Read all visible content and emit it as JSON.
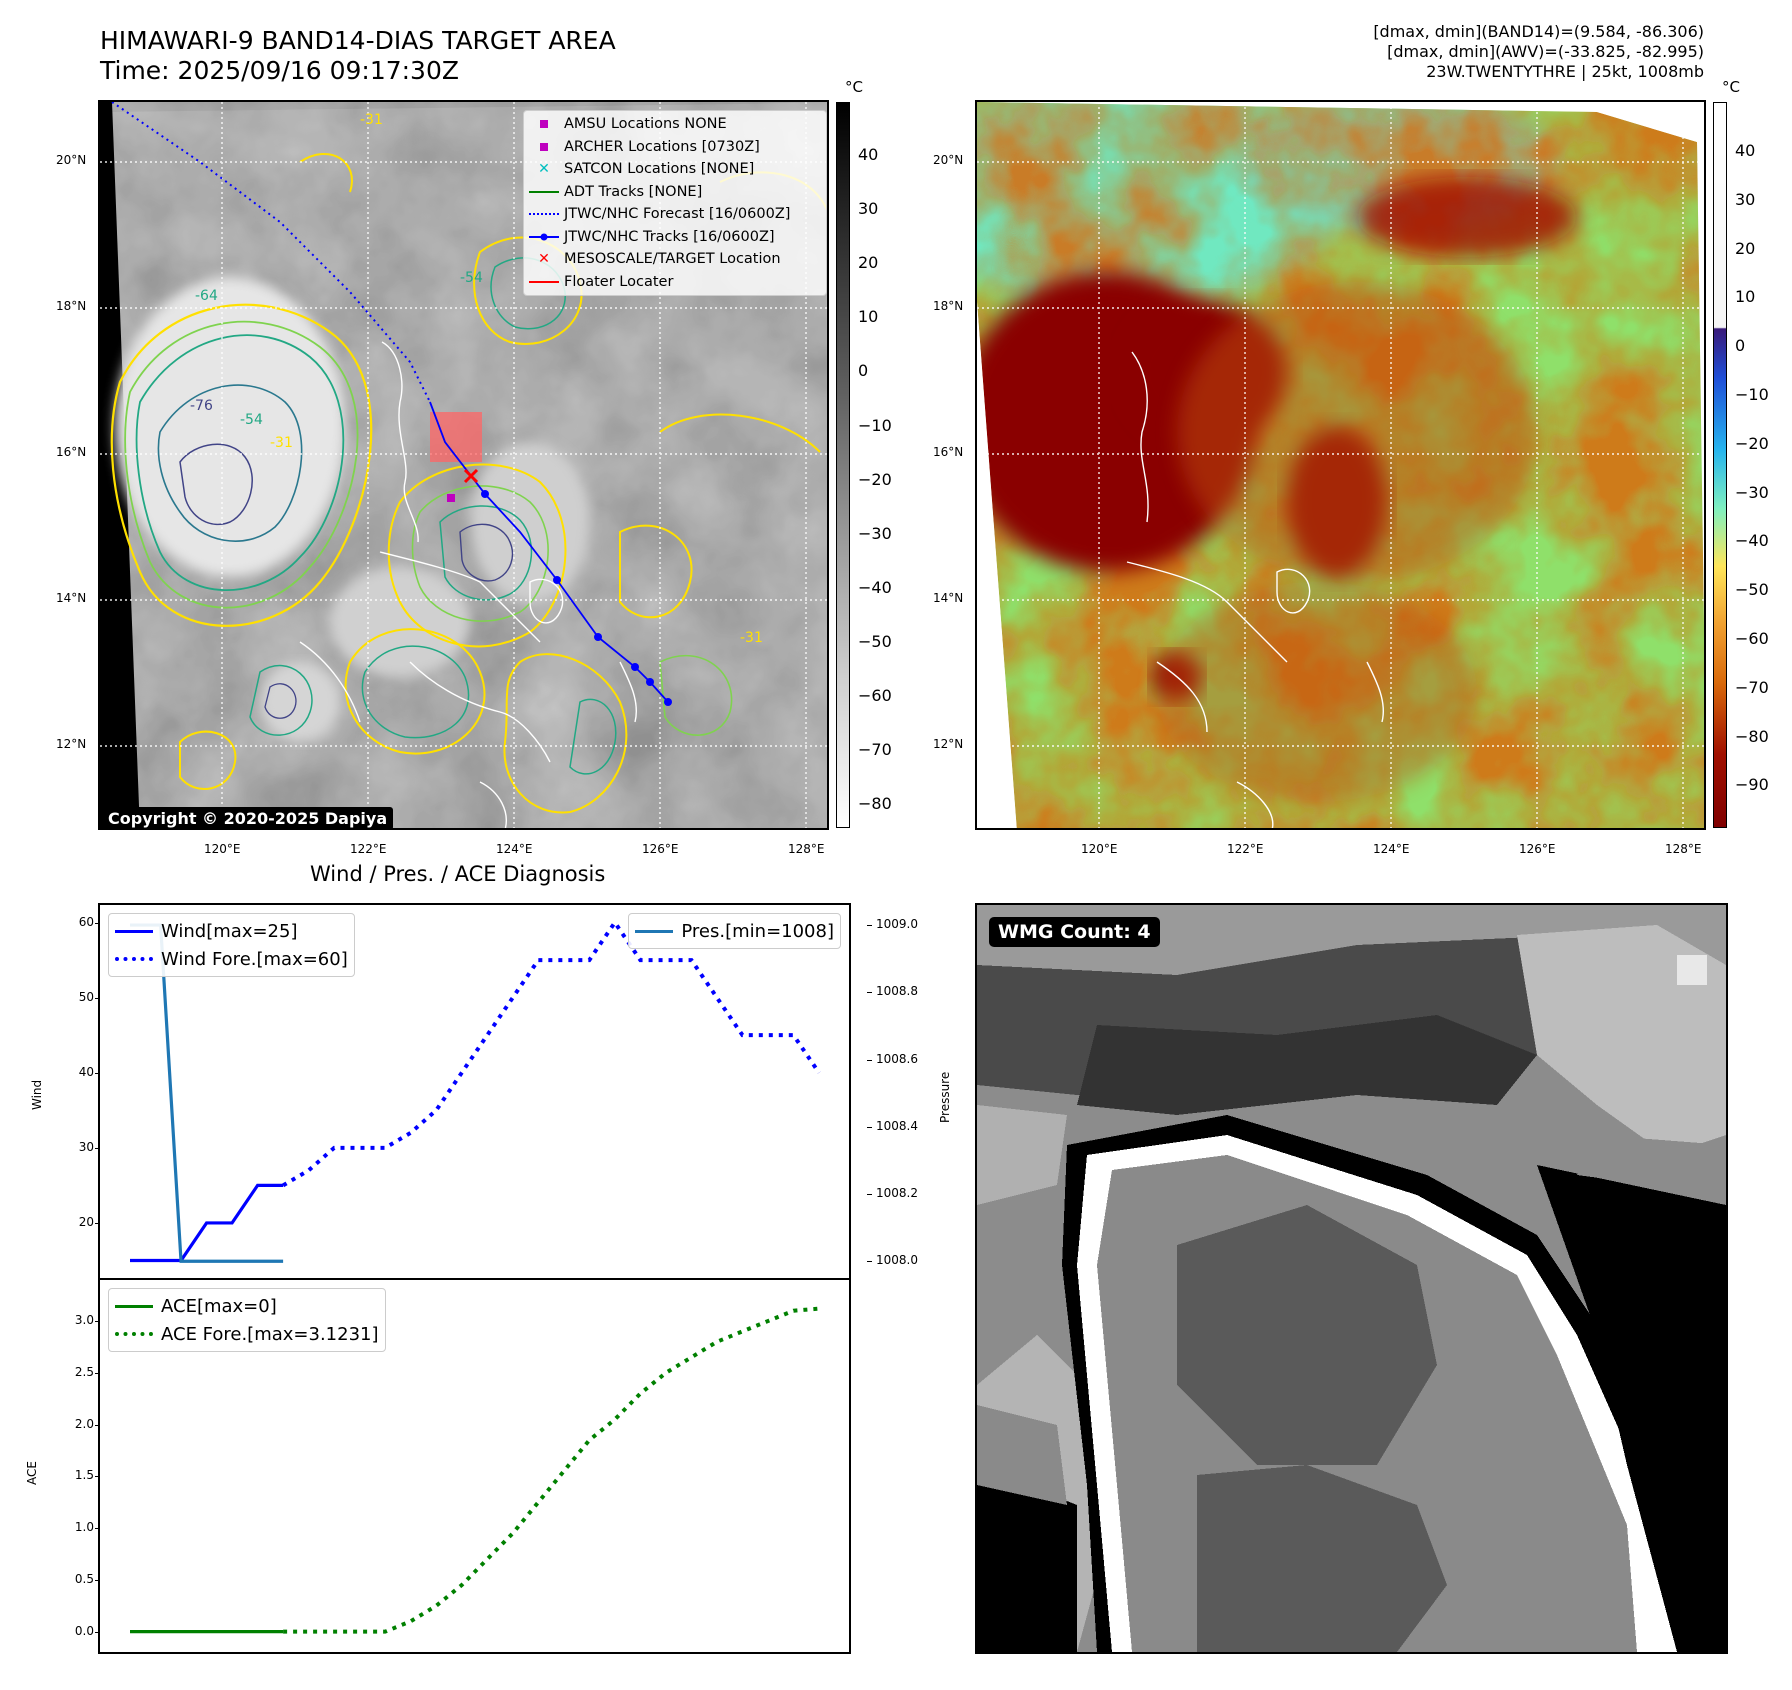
{
  "header": {
    "title": "HIMAWARI-9 BAND14-DIAS TARGET AREA",
    "time": "Time: 2025/09/16 09:17:30Z",
    "stats_line1": "[dmax, dmin](BAND14)=(9.584, -86.306)",
    "stats_line2": "[dmax, dmin](AWV)=(-33.825, -82.995)",
    "stats_line3": "23W.TWENTYTHRE | 25kt, 1008mb"
  },
  "map_axes": {
    "lat_labels": [
      "20°N",
      "18°N",
      "16°N",
      "14°N",
      "12°N"
    ],
    "lon_labels": [
      "120°E",
      "122°E",
      "124°E",
      "126°E",
      "128°E"
    ]
  },
  "band14_panel": {
    "unit": "°C",
    "colorbar_ticks": [
      "40",
      "30",
      "20",
      "10",
      "0",
      "−10",
      "−20",
      "−30",
      "−40",
      "−50",
      "−60",
      "−70",
      "−80"
    ],
    "copyright": "Copyright © 2020-2025 Dapiya",
    "contour_labels": [
      "-31",
      "-64",
      "-76",
      "-54",
      "-31",
      "-54",
      "-31"
    ],
    "legend": [
      {
        "label": "AMSU Locations NONE",
        "symbol": "square",
        "color": "#bf00bf"
      },
      {
        "label": "ARCHER Locations [0730Z]",
        "symbol": "square",
        "color": "#bf00bf"
      },
      {
        "label": "SATCON Locations [NONE]",
        "symbol": "x",
        "color": "#00bfbf"
      },
      {
        "label": "ADT Tracks [NONE]",
        "symbol": "line",
        "color": "#008000"
      },
      {
        "label": "JTWC/NHC Forecast [16/0600Z]",
        "symbol": "dotted",
        "color": "#0000ff"
      },
      {
        "label": "JTWC/NHC Tracks [16/0600Z]",
        "symbol": "line-dot",
        "color": "#0000ff"
      },
      {
        "label": "MESOSCALE/TARGET Location",
        "symbol": "x",
        "color": "#ff0000"
      },
      {
        "label": "Floater Locater",
        "symbol": "line",
        "color": "#ff0000"
      }
    ]
  },
  "awv_panel": {
    "unit": "°C",
    "colorbar_ticks": [
      "40",
      "30",
      "20",
      "10",
      "0",
      "−10",
      "−20",
      "−30",
      "−40",
      "−50",
      "−60",
      "−70",
      "−80",
      "−90"
    ]
  },
  "wmg_panel": {
    "label": "WMG Count: 4"
  },
  "chart_data": [
    {
      "type": "line",
      "title": "Wind / Pres. / ACE Diagnosis",
      "ylabel": "Wind",
      "ylim": [
        14,
        61
      ],
      "y_ticks": [
        20,
        30,
        40,
        50,
        60
      ],
      "series": [
        {
          "name": "Wind[max=25]",
          "style": "solid",
          "color": "#0000ff",
          "x": [
            0,
            1,
            2,
            3,
            4,
            5,
            6
          ],
          "values": [
            15,
            15,
            15,
            20,
            20,
            25,
            25
          ]
        },
        {
          "name": "Wind Fore.[max=60]",
          "style": "dotted",
          "color": "#0000ff",
          "x": [
            6,
            7,
            8,
            9,
            10,
            11,
            12,
            13,
            14,
            15,
            16,
            17,
            18,
            19,
            20,
            21,
            22,
            23,
            24,
            25,
            26,
            27
          ],
          "values": [
            25,
            27,
            30,
            30,
            30,
            32,
            35,
            40,
            45,
            50,
            55,
            55,
            55,
            60,
            55,
            55,
            55,
            50,
            45,
            45,
            45,
            40
          ]
        }
      ],
      "secondary": {
        "ylabel": "Pressure",
        "ylim": [
          1007.98,
          1009.03
        ],
        "y_ticks": [
          "1008.0",
          "1008.2",
          "1008.4",
          "1008.6",
          "1008.8",
          "1009.0"
        ],
        "series": [
          {
            "name": "Pres.[min=1008]",
            "style": "solid",
            "color": "#1f77b4",
            "x": [
              0,
              1,
              1.2,
              2,
              3,
              4,
              5,
              6
            ],
            "values": [
              1009,
              1009,
              1009,
              1008,
              1008,
              1008,
              1008,
              1008
            ]
          }
        ]
      }
    },
    {
      "type": "line",
      "ylabel": "ACE",
      "ylim": [
        -0.1,
        3.3
      ],
      "y_ticks": [
        "0.0",
        "0.5",
        "1.0",
        "1.5",
        "2.0",
        "2.5",
        "3.0"
      ],
      "series": [
        {
          "name": "ACE[max=0]",
          "style": "solid",
          "color": "#008000",
          "x": [
            0,
            1,
            2,
            3,
            4,
            5,
            6
          ],
          "values": [
            0,
            0,
            0,
            0,
            0,
            0,
            0
          ]
        },
        {
          "name": "ACE Fore.[max=3.1231]",
          "style": "dotted",
          "color": "#008000",
          "x": [
            6,
            7,
            8,
            9,
            10,
            11,
            12,
            13,
            14,
            15,
            16,
            17,
            18,
            19,
            20,
            21,
            22,
            23,
            24,
            25,
            26,
            27
          ],
          "values": [
            0,
            0,
            0,
            0,
            0,
            0.1,
            0.25,
            0.45,
            0.7,
            0.95,
            1.25,
            1.55,
            1.85,
            2.05,
            2.3,
            2.5,
            2.65,
            2.8,
            2.9,
            3.0,
            3.1,
            3.12
          ]
        }
      ]
    }
  ]
}
